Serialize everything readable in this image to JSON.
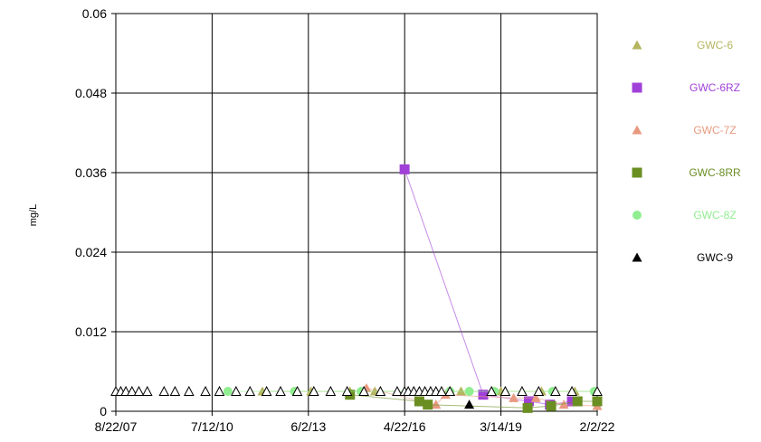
{
  "chart_data": {
    "type": "scatter",
    "ylabel": "mg/L",
    "ylim": [
      0,
      0.06
    ],
    "yticks": [
      "0",
      "0.012",
      "0.024",
      "0.036",
      "0.048",
      "0.06"
    ],
    "xlim": [
      "2007-08-22",
      "2022-02-02"
    ],
    "xticks": [
      "8/22/07",
      "7/12/10",
      "6/2/13",
      "4/22/16",
      "3/14/19",
      "2/2/22"
    ],
    "grid": true,
    "legend_position": "right",
    "series": [
      {
        "name": "GWC-6",
        "color": "#b5b560",
        "marker": "triangle",
        "points": [
          [
            "2012-01-15",
            0.003
          ],
          [
            "2013-07-01",
            0.003
          ],
          [
            "2014-09-01",
            0.003
          ],
          [
            "2015-06-01",
            0.003
          ],
          [
            "2016-04-22",
            0.003
          ],
          [
            "2017-02-01",
            0.003
          ],
          [
            "2018-01-01",
            0.003
          ],
          [
            "2019-03-14",
            0.003
          ],
          [
            "2020-06-01",
            0.003
          ],
          [
            "2021-06-01",
            0.003
          ],
          [
            "2022-02-02",
            0.003
          ]
        ]
      },
      {
        "name": "GWC-6RZ",
        "color": "#a040d8",
        "marker": "square",
        "points": [
          [
            "2016-04-22",
            0.0365
          ],
          [
            "2018-09-01",
            0.0025
          ],
          [
            "2020-01-15",
            0.0015
          ],
          [
            "2020-09-01",
            0.001
          ],
          [
            "2021-05-01",
            0.0015
          ]
        ]
      },
      {
        "name": "GWC-7Z",
        "color": "#e89a80",
        "marker": "triangle",
        "points": [
          [
            "2015-03-01",
            0.0035
          ],
          [
            "2017-04-01",
            0.001
          ],
          [
            "2017-07-15",
            0.0025
          ],
          [
            "2019-08-01",
            0.002
          ],
          [
            "2020-04-01",
            0.002
          ],
          [
            "2021-02-01",
            0.001
          ],
          [
            "2022-02-02",
            0.0008
          ]
        ]
      },
      {
        "name": "GWC-8RR",
        "color": "#6b8e23",
        "marker": "square",
        "points": [
          [
            "2014-09-01",
            0.0025
          ],
          [
            "2016-10-01",
            0.0015
          ],
          [
            "2017-01-01",
            0.001
          ],
          [
            "2020-01-01",
            0.0005
          ],
          [
            "2020-09-15",
            0.0008
          ],
          [
            "2021-07-01",
            0.0015
          ],
          [
            "2022-02-02",
            0.0015
          ]
        ]
      },
      {
        "name": "GWC-8Z",
        "color": "#90ee90",
        "marker": "circle",
        "points": [
          [
            "2011-01-01",
            0.003
          ],
          [
            "2013-01-01",
            0.003
          ],
          [
            "2015-01-01",
            0.003
          ],
          [
            "2017-09-01",
            0.003
          ],
          [
            "2018-04-01",
            0.003
          ],
          [
            "2019-01-01",
            0.003
          ],
          [
            "2020-10-01",
            0.003
          ],
          [
            "2022-01-01",
            0.003
          ]
        ]
      },
      {
        "name": "GWC-9",
        "color": "#000000",
        "marker": "triangle",
        "points": [
          [
            "2018-04-01",
            0.001
          ]
        ]
      },
      {
        "name": "",
        "color": "#000000",
        "marker": "triangle-open",
        "points": [
          [
            "2007-08-22",
            0.003
          ],
          [
            "2007-10-15",
            0.003
          ],
          [
            "2007-12-10",
            0.003
          ],
          [
            "2008-02-15",
            0.003
          ],
          [
            "2008-05-01",
            0.003
          ],
          [
            "2008-08-01",
            0.003
          ],
          [
            "2009-02-01",
            0.003
          ],
          [
            "2009-06-01",
            0.003
          ],
          [
            "2009-11-01",
            0.003
          ],
          [
            "2010-05-01",
            0.003
          ],
          [
            "2010-10-01",
            0.003
          ],
          [
            "2011-04-01",
            0.003
          ],
          [
            "2011-09-01",
            0.003
          ],
          [
            "2012-03-01",
            0.003
          ],
          [
            "2012-08-01",
            0.003
          ],
          [
            "2013-02-01",
            0.003
          ],
          [
            "2013-08-01",
            0.003
          ],
          [
            "2014-02-01",
            0.003
          ],
          [
            "2014-08-01",
            0.003
          ],
          [
            "2015-02-01",
            0.003
          ],
          [
            "2015-08-01",
            0.003
          ],
          [
            "2016-02-01",
            0.003
          ],
          [
            "2016-04-22",
            0.003
          ],
          [
            "2016-06-01",
            0.003
          ],
          [
            "2016-08-01",
            0.003
          ],
          [
            "2016-10-01",
            0.003
          ],
          [
            "2016-12-01",
            0.003
          ],
          [
            "2017-02-01",
            0.003
          ],
          [
            "2017-04-01",
            0.003
          ],
          [
            "2017-06-01",
            0.003
          ],
          [
            "2017-09-01",
            0.003
          ],
          [
            "2018-12-01",
            0.003
          ],
          [
            "2019-05-01",
            0.003
          ],
          [
            "2019-11-01",
            0.003
          ],
          [
            "2020-05-01",
            0.003
          ],
          [
            "2020-11-01",
            0.003
          ],
          [
            "2021-05-01",
            0.003
          ],
          [
            "2022-02-02",
            0.003
          ]
        ]
      }
    ]
  }
}
